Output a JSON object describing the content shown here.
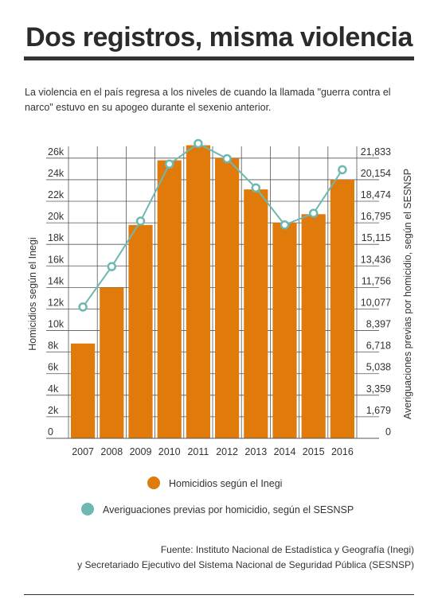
{
  "title": "Dos registros, misma violencia",
  "subtitle": "La violencia en el país regresa a los niveles de cuando la llamada \"guerra contra el narco\" estuvo en su apogeo durante el sexenio anterior.",
  "source": {
    "line1": "Fuente: Instituto Nacional de Estadística y Geografía (Inegi)",
    "line2": "y Secretariado Ejecutivo del Sistema Nacional de Seguridad Pública (SESNSP)"
  },
  "colors": {
    "bar": "#e07b0b",
    "line": "#6fb8b1",
    "grid": "#555555"
  },
  "chart_data": {
    "type": "bar",
    "categories": [
      "2007",
      "2008",
      "2009",
      "2010",
      "2011",
      "2012",
      "2013",
      "2014",
      "2015",
      "2016"
    ],
    "y_left": {
      "label": "Homicidios según el Inegi",
      "range": [
        0,
        26800
      ],
      "ticks": [
        0,
        2000,
        4000,
        6000,
        8000,
        10000,
        12000,
        14000,
        16000,
        18000,
        20000,
        22000,
        24000,
        26000
      ],
      "tick_labels": [
        "0",
        "2k",
        "4k",
        "6k",
        "8k",
        "10k",
        "12k",
        "14k",
        "16k",
        "18k",
        "20k",
        "22k",
        "24k",
        "26k"
      ]
    },
    "y_right": {
      "label": "Averiguaciones previas por homicidio, según el SESNSP",
      "range": [
        0,
        22533
      ],
      "tick_labels": [
        "0",
        "1,679",
        "3,359",
        "5,038",
        "6,718",
        "8,397",
        "10,077",
        "11,756",
        "13,436",
        "15,115",
        "16,795",
        "18,474",
        "20,154",
        "21,833"
      ]
    },
    "series": [
      {
        "name": "Homicidios según el Inegi",
        "type": "bar",
        "axis": "left",
        "values": [
          8800,
          14000,
          19800,
          25800,
          27200,
          26000,
          23100,
          20000,
          20800,
          24000
        ]
      },
      {
        "name": "Averiguaciones previas por homicidio, según el SESNSP",
        "type": "line",
        "axis": "right",
        "values": [
          10250,
          13400,
          16950,
          21400,
          23000,
          21820,
          19540,
          16650,
          17560,
          20960
        ]
      }
    ],
    "grid": true,
    "legend": "bottom"
  }
}
